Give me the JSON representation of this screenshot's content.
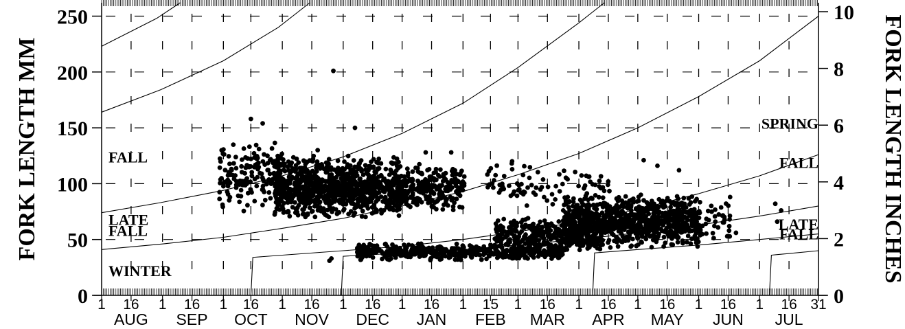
{
  "chart_data": {
    "type": "scatter",
    "title": "",
    "ylabel_left": "FORK LENGTH MM",
    "ylabel_right": "FORK LENGTH INCHES",
    "ylim": [
      0,
      262
    ],
    "yticks_left": [
      0,
      50,
      100,
      150,
      200,
      250
    ],
    "yticks_right": [
      0,
      2,
      4,
      6,
      8,
      10
    ],
    "x_domain_days": [
      0,
      365
    ],
    "x_ticks": [
      {
        "label": "1",
        "day": 0
      },
      {
        "label": "16",
        "day": 15
      },
      {
        "label": "1",
        "day": 31
      },
      {
        "label": "16",
        "day": 46
      },
      {
        "label": "1",
        "day": 62
      },
      {
        "label": "16",
        "day": 76
      },
      {
        "label": "1",
        "day": 92
      },
      {
        "label": "16",
        "day": 107
      },
      {
        "label": "1",
        "day": 123
      },
      {
        "label": "16",
        "day": 138
      },
      {
        "label": "1",
        "day": 153
      },
      {
        "label": "16",
        "day": 168
      },
      {
        "label": "1",
        "day": 184
      },
      {
        "label": "15",
        "day": 198
      },
      {
        "label": "1",
        "day": 212
      },
      {
        "label": "16",
        "day": 227
      },
      {
        "label": "1",
        "day": 243
      },
      {
        "label": "16",
        "day": 258
      },
      {
        "label": "1",
        "day": 273
      },
      {
        "label": "16",
        "day": 288
      },
      {
        "label": "1",
        "day": 304
      },
      {
        "label": "16",
        "day": 319
      },
      {
        "label": "1",
        "day": 335
      },
      {
        "label": "16",
        "day": 350
      },
      {
        "label": "31",
        "day": 365
      }
    ],
    "months": [
      {
        "label": "AUG",
        "day": 15
      },
      {
        "label": "SEP",
        "day": 46
      },
      {
        "label": "OCT",
        "day": 76
      },
      {
        "label": "NOV",
        "day": 107
      },
      {
        "label": "DEC",
        "day": 138
      },
      {
        "label": "JAN",
        "day": 168
      },
      {
        "label": "FEB",
        "day": 198
      },
      {
        "label": "MAR",
        "day": 227
      },
      {
        "label": "APR",
        "day": 258
      },
      {
        "label": "MAY",
        "day": 288
      },
      {
        "label": "JUN",
        "day": 319
      },
      {
        "label": "JUL",
        "day": 350
      }
    ],
    "run_labels_left": [
      {
        "text": "FALL",
        "y": 124
      },
      {
        "text": "LATE",
        "y": 68
      },
      {
        "text": "FALL",
        "y": 58
      },
      {
        "text": "WINTER",
        "y": 22
      }
    ],
    "run_labels_right": [
      {
        "text": "SPRING",
        "y": 154
      },
      {
        "text": "FALL",
        "y": 119
      },
      {
        "text": "LATE",
        "y": 64
      },
      {
        "text": "FALL",
        "y": 55
      }
    ],
    "size_curves": [
      {
        "points": [
          [
            0,
            223
          ],
          [
            28,
            248
          ],
          [
            40,
            262
          ]
        ]
      },
      {
        "points": [
          [
            0,
            164
          ],
          [
            30,
            184
          ],
          [
            62,
            210
          ],
          [
            90,
            240
          ],
          [
            106,
            262
          ]
        ]
      },
      {
        "points": [
          [
            0,
            74
          ],
          [
            30,
            83
          ],
          [
            62,
            94
          ],
          [
            92,
            107
          ],
          [
            123,
            124
          ],
          [
            153,
            145
          ],
          [
            184,
            172
          ],
          [
            212,
            204
          ],
          [
            243,
            244
          ],
          [
            256,
            262
          ]
        ]
      },
      {
        "points": [
          [
            0,
            41
          ],
          [
            31,
            46
          ],
          [
            62,
            52
          ],
          [
            92,
            60
          ],
          [
            123,
            69
          ],
          [
            153,
            80
          ],
          [
            184,
            93
          ],
          [
            212,
            108
          ],
          [
            243,
            127
          ],
          [
            273,
            150
          ],
          [
            304,
            178
          ],
          [
            335,
            210
          ],
          [
            365,
            250
          ]
        ]
      },
      {
        "points": [
          [
            76,
            0
          ],
          [
            77,
            34
          ],
          [
            92,
            36
          ],
          [
            123,
            40
          ],
          [
            153,
            44
          ],
          [
            184,
            50
          ],
          [
            212,
            57
          ],
          [
            243,
            66
          ],
          [
            273,
            77
          ],
          [
            304,
            91
          ],
          [
            335,
            107
          ],
          [
            365,
            126
          ]
        ]
      },
      {
        "points": [
          [
            122,
            0
          ],
          [
            123,
            35
          ],
          [
            153,
            38
          ],
          [
            184,
            41
          ],
          [
            212,
            45
          ],
          [
            243,
            50
          ],
          [
            273,
            56
          ],
          [
            304,
            63
          ],
          [
            335,
            71
          ],
          [
            365,
            80
          ]
        ]
      },
      {
        "points": [
          [
            250,
            0
          ],
          [
            251,
            38
          ],
          [
            273,
            41
          ],
          [
            304,
            45
          ],
          [
            335,
            50
          ],
          [
            365,
            55
          ]
        ]
      },
      {
        "points": [
          [
            340,
            0
          ],
          [
            341,
            36
          ],
          [
            365,
            40
          ]
        ]
      }
    ],
    "clusters": [
      {
        "day_min": 60,
        "day_max": 92,
        "fl_min": 72,
        "fl_max": 138,
        "count": 160
      },
      {
        "day_min": 88,
        "day_max": 152,
        "fl_min": 68,
        "fl_max": 125,
        "count": 950
      },
      {
        "day_min": 150,
        "day_max": 185,
        "fl_min": 74,
        "fl_max": 118,
        "count": 260
      },
      {
        "day_min": 195,
        "day_max": 260,
        "fl_min": 78,
        "fl_max": 120,
        "count": 90
      },
      {
        "day_min": 130,
        "day_max": 235,
        "fl_min": 31,
        "fl_max": 47,
        "count": 520
      },
      {
        "day_min": 200,
        "day_max": 255,
        "fl_min": 38,
        "fl_max": 70,
        "count": 320
      },
      {
        "day_min": 235,
        "day_max": 305,
        "fl_min": 42,
        "fl_max": 92,
        "count": 900
      },
      {
        "day_min": 300,
        "day_max": 320,
        "fl_min": 48,
        "fl_max": 88,
        "count": 40
      }
    ],
    "outliers": [
      [
        118,
        201
      ],
      [
        129,
        150
      ],
      [
        76,
        158
      ],
      [
        82,
        154
      ],
      [
        110,
        130
      ],
      [
        165,
        128
      ],
      [
        178,
        128
      ],
      [
        209,
        120
      ],
      [
        276,
        121
      ],
      [
        283,
        116
      ],
      [
        294,
        112
      ],
      [
        320,
        88
      ],
      [
        343,
        82
      ],
      [
        344,
        66
      ],
      [
        346,
        76
      ],
      [
        323,
        56
      ],
      [
        116,
        31
      ],
      [
        117,
        33
      ]
    ]
  }
}
